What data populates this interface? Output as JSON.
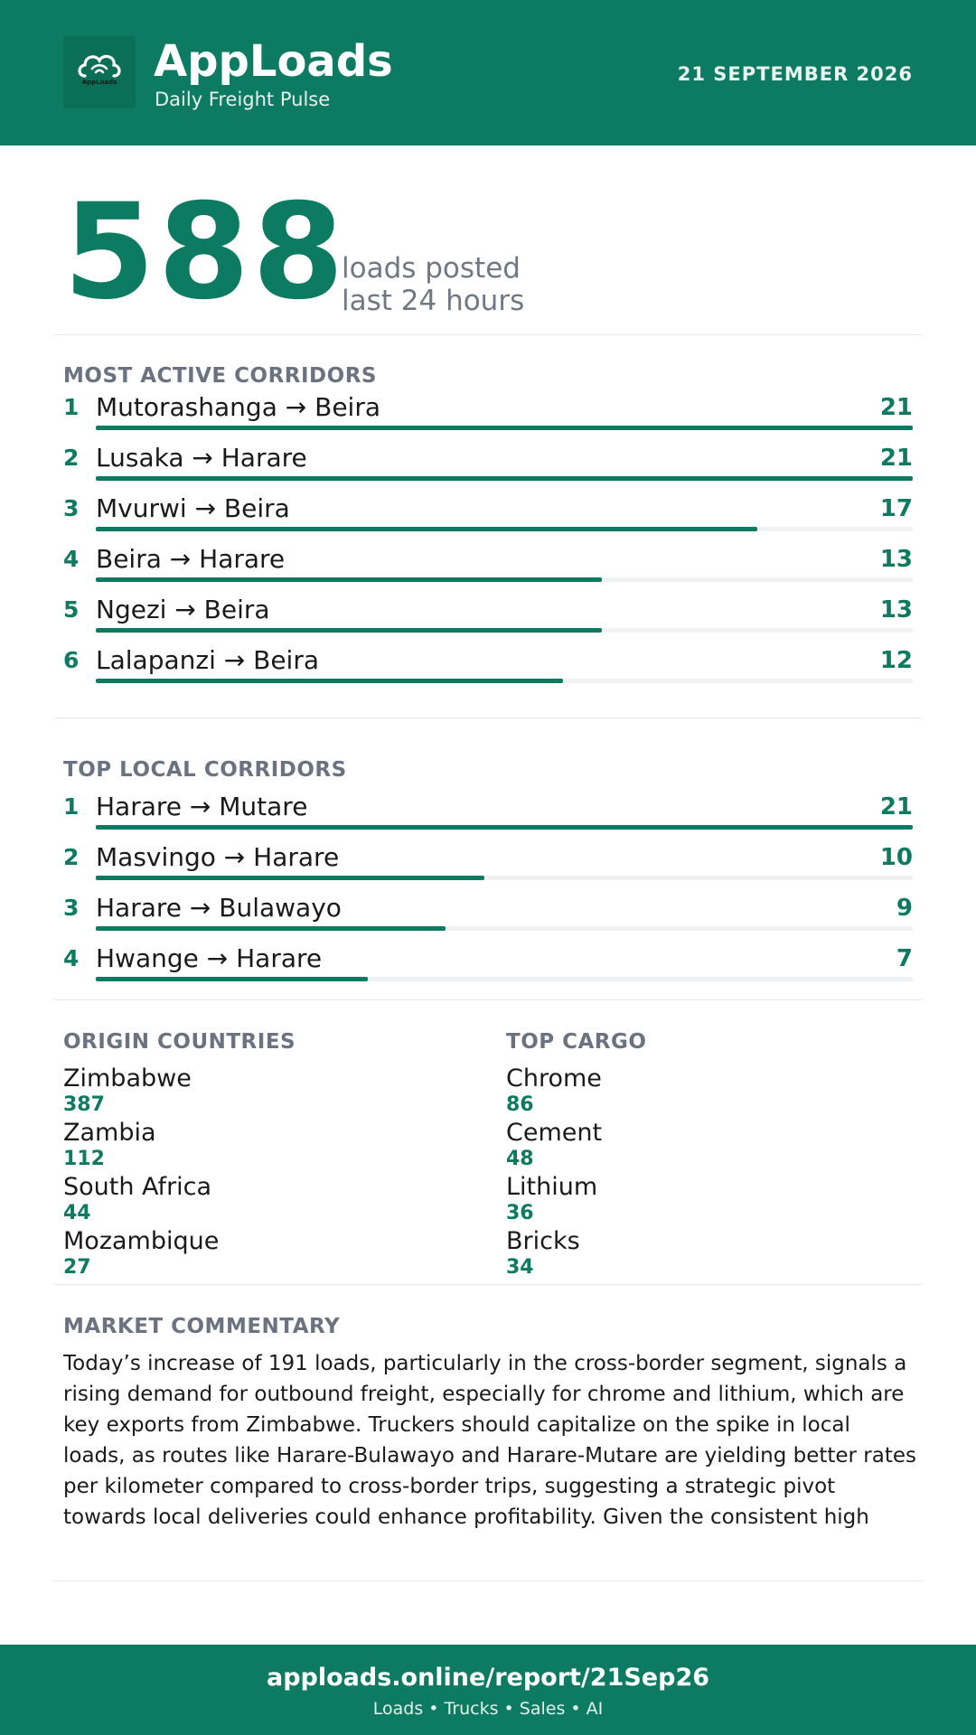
{
  "header": {
    "brand": "AppLoads",
    "tagline": "Daily Freight Pulse",
    "date": "21 SEPTEMBER 2026",
    "logo_text": "AppLoads",
    "color": "#0d7a62"
  },
  "hero": {
    "value": "588",
    "line1": "loads posted",
    "line2": "last 24 hours"
  },
  "active_corridors": {
    "title": "MOST ACTIVE CORRIDORS",
    "max": 21,
    "items": [
      {
        "rank": "1",
        "route": "Mutorashanga → Beira",
        "count": 21
      },
      {
        "rank": "2",
        "route": "Lusaka → Harare",
        "count": 21
      },
      {
        "rank": "3",
        "route": "Mvurwi → Beira",
        "count": 17
      },
      {
        "rank": "4",
        "route": "Beira → Harare",
        "count": 13
      },
      {
        "rank": "5",
        "route": "Ngezi → Beira",
        "count": 13
      },
      {
        "rank": "6",
        "route": "Lalapanzi → Beira",
        "count": 12
      }
    ]
  },
  "local_corridors": {
    "title": "TOP LOCAL CORRIDORS",
    "max": 21,
    "items": [
      {
        "rank": "1",
        "route": "Harare → Mutare",
        "count": 21
      },
      {
        "rank": "2",
        "route": "Masvingo → Harare",
        "count": 10
      },
      {
        "rank": "3",
        "route": "Harare → Bulawayo",
        "count": 9
      },
      {
        "rank": "4",
        "route": "Hwange → Harare",
        "count": 7
      }
    ]
  },
  "origin_countries": {
    "title": "ORIGIN COUNTRIES",
    "items": [
      {
        "name": "Zimbabwe",
        "value": "387"
      },
      {
        "name": "Zambia",
        "value": "112"
      },
      {
        "name": "South Africa",
        "value": "44"
      },
      {
        "name": "Mozambique",
        "value": "27"
      }
    ]
  },
  "top_cargo": {
    "title": "TOP CARGO",
    "items": [
      {
        "name": "Chrome",
        "value": "86"
      },
      {
        "name": "Cement",
        "value": "48"
      },
      {
        "name": "Lithium",
        "value": "36"
      },
      {
        "name": "Bricks",
        "value": "34"
      }
    ]
  },
  "commentary": {
    "title": "MARKET COMMENTARY",
    "text": "Today’s increase of 191 loads, particularly in the cross-border segment, signals a rising demand for outbound freight, especially for chrome and lithium, which are key exports from Zimbabwe. Truckers should capitalize on the spike in local loads, as routes like Harare-Bulawayo and Harare-Mutare are yielding better rates per kilometer compared to cross-border trips, suggesting a strategic pivot towards local deliveries could enhance profitability. Given the consistent high volume from Hwange and the potential"
  },
  "footer": {
    "url": "apploads.online/report/21Sep26",
    "tagline": "Loads • Trucks • Sales • AI"
  }
}
